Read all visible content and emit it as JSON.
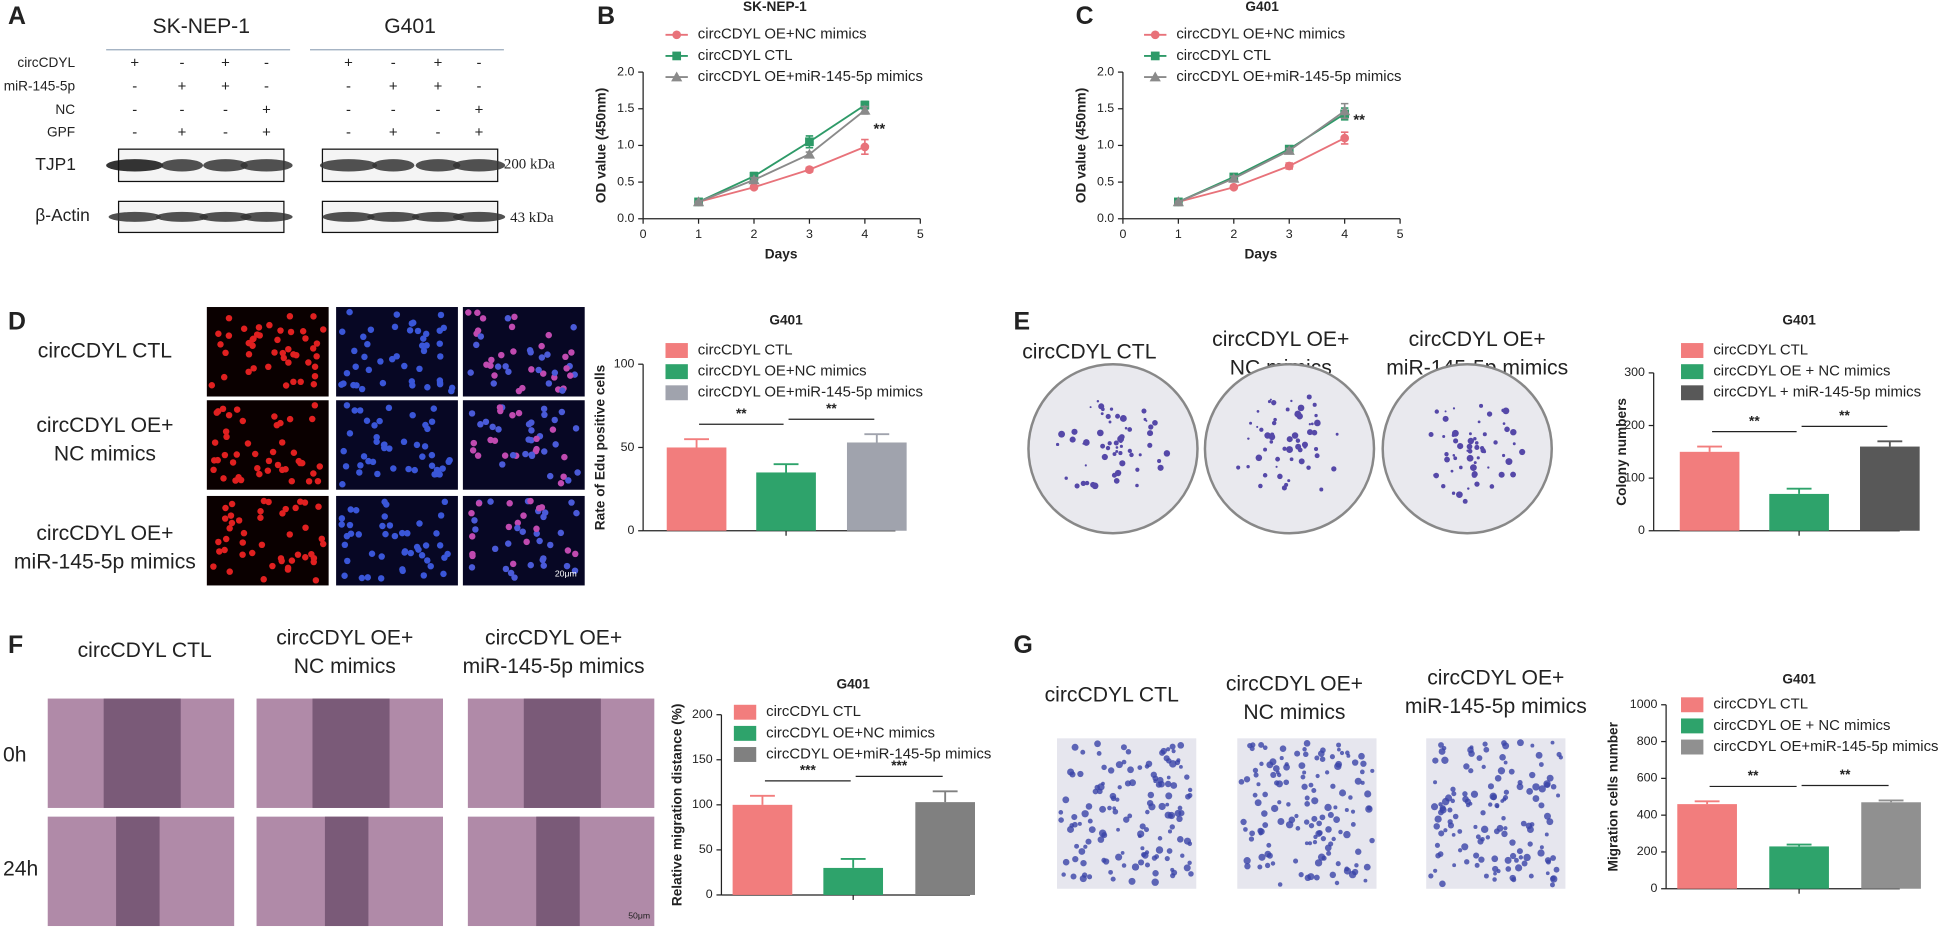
{
  "panel_labels": [
    "A",
    "B",
    "C",
    "D",
    "E",
    "F",
    "G"
  ],
  "western_blot": {
    "row_labels": [
      "circCDYL",
      "miR-145-5p",
      "NC",
      "GPF"
    ],
    "blots": [
      {
        "cell_line": "SK-NEP-1",
        "signs": [
          [
            "+",
            "-",
            "+",
            "-"
          ],
          [
            "-",
            "+",
            "+",
            "-"
          ],
          [
            "-",
            "-",
            "-",
            "+"
          ],
          [
            "-",
            "+",
            "-",
            "+"
          ]
        ]
      },
      {
        "cell_line": "G401",
        "signs": [
          [
            "+",
            "-",
            "+",
            "-"
          ],
          [
            "-",
            "+",
            "+",
            "-"
          ],
          [
            "-",
            "-",
            "-",
            "+"
          ],
          [
            "-",
            "+",
            "-",
            "+"
          ]
        ]
      }
    ],
    "bands": [
      "TJP1",
      "β-Actin"
    ],
    "sizes": [
      "200 kDa",
      "43 kDa"
    ]
  },
  "edu_panel": {
    "row_labels": [
      [
        "circCDYL CTL"
      ],
      [
        "circCDYL OE+",
        "NC mimics"
      ],
      [
        "circCDYL OE+",
        "miR-145-5p mimics"
      ]
    ],
    "scale_bar": "20μm"
  },
  "colony_panel": {
    "labels": [
      [
        "circCDYL CTL"
      ],
      [
        "circCDYL OE+",
        "NC mimics"
      ],
      [
        "circCDYL OE+",
        "miR-145-5p mimics"
      ]
    ]
  },
  "wound_panel": {
    "labels": [
      [
        "circCDYL CTL"
      ],
      [
        "circCDYL OE+",
        "NC mimics"
      ],
      [
        "circCDYL OE+",
        "miR-145-5p mimics"
      ]
    ],
    "time_labels": [
      "0h",
      "24h"
    ],
    "scale_bar": "50μm"
  },
  "transwell_panel": {
    "labels": [
      [
        "circCDYL CTL"
      ],
      [
        "circCDYL OE+",
        "NC mimics"
      ],
      [
        "circCDYL OE+",
        "miR-145-5p mimics"
      ]
    ]
  },
  "chart_data": [
    {
      "type": "line",
      "title": "SK-NEP-1",
      "x_label": "Days",
      "y_label": "OD value (450nm)",
      "x": [
        1,
        2,
        3,
        4
      ],
      "xlim": [
        0,
        5
      ],
      "xticks": [
        0,
        1,
        2,
        3,
        4,
        5
      ],
      "ylim": [
        0,
        2
      ],
      "yticks": [
        {
          "value": 0,
          "label": "0.0"
        },
        0.5,
        {
          "value": 1,
          "label": "1.0"
        },
        1.5,
        {
          "value": 2,
          "label": "2.0"
        }
      ],
      "annotation": "**",
      "series": [
        {
          "name": "circCDYL OE+NC mimics",
          "color": "#e8727a",
          "marker": "circle",
          "values": [
            0.23,
            0.43,
            0.67,
            0.98
          ],
          "errors": [
            0.01,
            0.02,
            0.03,
            0.1
          ]
        },
        {
          "name": "circCDYL CTL",
          "color": "#2e9a68",
          "marker": "square",
          "values": [
            0.23,
            0.58,
            1.05,
            1.55
          ],
          "errors": [
            0.01,
            0.05,
            0.08,
            0.05
          ]
        },
        {
          "name": "circCDYL OE+miR-145-5p mimics",
          "color": "#8a8a8a",
          "marker": "triangle",
          "values": [
            0.23,
            0.53,
            0.88,
            1.48
          ],
          "errors": [
            0.01,
            0.03,
            0.03,
            0.05
          ]
        }
      ]
    },
    {
      "type": "line",
      "title": "G401",
      "x_label": "Days",
      "y_label": "OD value (450nm)",
      "x": [
        1,
        2,
        3,
        4
      ],
      "xlim": [
        0,
        5
      ],
      "xticks": [
        0,
        1,
        2,
        3,
        4,
        5
      ],
      "ylim": [
        0,
        2
      ],
      "yticks": [
        {
          "value": 0,
          "label": "0.0"
        },
        0.5,
        {
          "value": 1,
          "label": "1.0"
        },
        1.5,
        {
          "value": 2,
          "label": "2.0"
        }
      ],
      "annotation": "**",
      "series": [
        {
          "name": "circCDYL OE+NC mimics",
          "color": "#e8727a",
          "marker": "circle",
          "values": [
            0.23,
            0.43,
            0.72,
            1.1
          ],
          "errors": [
            0.01,
            0.02,
            0.04,
            0.08
          ]
        },
        {
          "name": "circCDYL CTL",
          "color": "#2e9a68",
          "marker": "square",
          "values": [
            0.23,
            0.57,
            0.95,
            1.43
          ],
          "errors": [
            0.01,
            0.03,
            0.03,
            0.08
          ]
        },
        {
          "name": "circCDYL OE+miR-145-5p mimics",
          "color": "#8a8a8a",
          "marker": "triangle",
          "values": [
            0.23,
            0.55,
            0.93,
            1.47
          ],
          "errors": [
            0.01,
            0.03,
            0.03,
            0.1
          ]
        }
      ]
    },
    {
      "type": "bar",
      "title": "G401",
      "y_label": "Rate of Edu positive cells",
      "categories": [
        "circCDYL CTL",
        "circCDYL OE+NC mimics",
        "circCDYL OE+miR-145-5p mimics"
      ],
      "colors": [
        "#f27d7d",
        "#2ea36b",
        "#a0a3ad"
      ],
      "values": [
        50,
        35,
        53
      ],
      "errors": [
        5,
        5,
        5
      ],
      "ylim": [
        0,
        100
      ],
      "yticks": [
        0,
        50,
        100
      ],
      "significance": [
        "**",
        "**"
      ]
    },
    {
      "type": "bar",
      "title": "G401",
      "y_label": "Colony numbers",
      "categories": [
        "circCDYL CTL",
        "circCDYL OE + NC mimics",
        "circCDYL + miR-145-5p mimics"
      ],
      "colors": [
        "#f27d7d",
        "#2ea36b",
        "#585858"
      ],
      "values": [
        150,
        70,
        160
      ],
      "errors": [
        10,
        10,
        10
      ],
      "ylim": [
        0,
        300
      ],
      "yticks": [
        0,
        100,
        200,
        300
      ],
      "significance": [
        "**",
        "**"
      ]
    },
    {
      "type": "bar",
      "title": "G401",
      "y_label": "Relative migration distance (%)",
      "categories": [
        "circCDYL CTL",
        "circCDYL OE+NC mimics",
        "circCDYL OE+miR-145-5p mimics"
      ],
      "colors": [
        "#f27d7d",
        "#2ea36b",
        "#808080"
      ],
      "values": [
        100,
        30,
        103
      ],
      "errors": [
        10,
        10,
        12
      ],
      "ylim": [
        0,
        200
      ],
      "yticks": [
        0,
        50,
        100,
        150,
        200
      ],
      "significance": [
        "***",
        "***"
      ]
    },
    {
      "type": "bar",
      "title": "G401",
      "y_label": "Migration cells number",
      "categories": [
        "circCDYL CTL",
        "circCDYL OE + NC mimics",
        "circCDYL OE+miR-145-5p  mimics"
      ],
      "colors": [
        "#f27d7d",
        "#2ea36b",
        "#909090"
      ],
      "values": [
        460,
        230,
        470
      ],
      "errors": [
        15,
        10,
        10
      ],
      "ylim": [
        0,
        1000
      ],
      "yticks": [
        0,
        200,
        400,
        600,
        800,
        1000
      ],
      "significance": [
        "**",
        "**"
      ]
    }
  ]
}
